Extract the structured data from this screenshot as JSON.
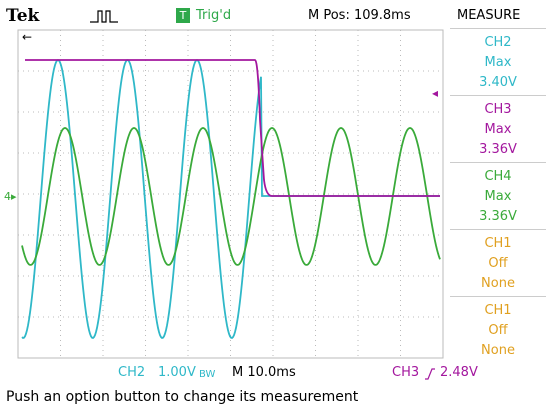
{
  "header": {
    "brand": "Tek",
    "trigger_badge": "T",
    "trigger_status": "Trig'd",
    "position": "M Pos: 109.8ms",
    "menu_title": "MEASURE"
  },
  "measurements": [
    {
      "channel": "CH2",
      "type": "Max",
      "value": "3.40V"
    },
    {
      "channel": "CH3",
      "type": "Max",
      "value": "3.36V"
    },
    {
      "channel": "CH4",
      "type": "Max",
      "value": "3.36V"
    },
    {
      "channel": "CH1",
      "type": "Off",
      "value": "None"
    },
    {
      "channel": "CH1",
      "type": "Off",
      "value": "None"
    }
  ],
  "footer": {
    "ch2_label": "CH2",
    "ch2_scale": "1.00V",
    "bandwidth": "BW",
    "timebase": "M 10.0ms",
    "trigger_channel": "CH3",
    "trigger_level": "2.48V",
    "message": "Push an option button to change its measurement"
  }
}
